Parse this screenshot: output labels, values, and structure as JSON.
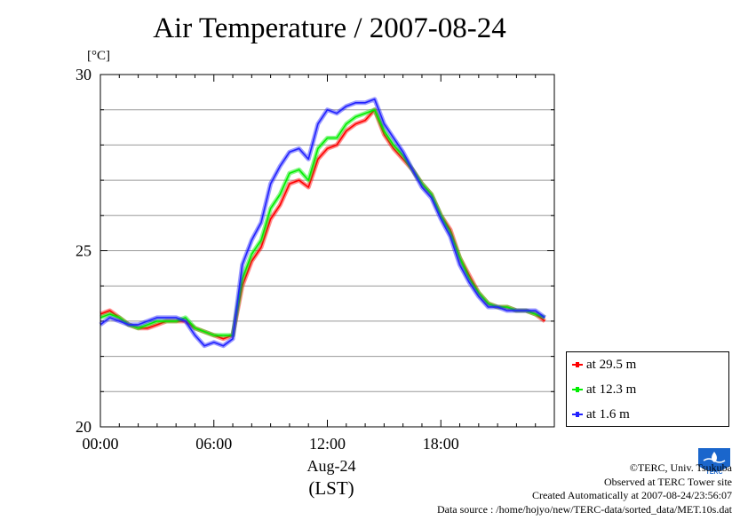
{
  "title": "Air Temperature / 2007-08-24",
  "unit": "[°C]",
  "date_label": "Aug-24",
  "tz_label": "(LST)",
  "credits": [
    "©TERC, Univ. Tsukuba",
    "Observed at TERC Tower site",
    "Created Automatically at 2007-08-24/23:56:07",
    "Data source : /home/hojyo/new/TERC-data/sorted_data/MET.10s.dat"
  ],
  "logo_text": "TERC",
  "chart_data": {
    "type": "line",
    "title": "Air Temperature / 2007-08-24",
    "xlabel": "Aug-24 (LST)",
    "ylabel": "[°C]",
    "xlim": [
      0,
      24
    ],
    "ylim": [
      20,
      30
    ],
    "x_ticks": [
      "00:00",
      "06:00",
      "12:00",
      "18:00"
    ],
    "y_ticks": [
      "20",
      "25",
      "30"
    ],
    "grid": true,
    "legend_position": "bottom-right outside",
    "x": [
      0,
      0.5,
      1,
      1.5,
      2,
      2.5,
      3,
      3.5,
      4,
      4.5,
      5,
      5.5,
      6,
      6.5,
      7,
      7.5,
      8,
      8.5,
      9,
      9.5,
      10,
      10.5,
      11,
      11.5,
      12,
      12.5,
      13,
      13.5,
      14,
      14.5,
      15,
      15.5,
      16,
      16.5,
      17,
      17.5,
      18,
      18.5,
      19,
      19.5,
      20,
      20.5,
      21,
      21.5,
      22,
      22.5,
      23,
      23.5
    ],
    "series": [
      {
        "name": "at 29.5 m",
        "color": "#ff0000",
        "values": [
          23.2,
          23.3,
          23.1,
          22.9,
          22.8,
          22.8,
          22.9,
          23.0,
          23.0,
          23.0,
          22.8,
          22.7,
          22.6,
          22.5,
          22.6,
          24.0,
          24.7,
          25.1,
          25.9,
          26.3,
          26.9,
          27.0,
          26.8,
          27.6,
          27.9,
          28.0,
          28.4,
          28.6,
          28.7,
          29.0,
          28.3,
          27.9,
          27.6,
          27.3,
          26.9,
          26.6,
          26.0,
          25.6,
          24.8,
          24.3,
          23.8,
          23.5,
          23.4,
          23.4,
          23.3,
          23.3,
          23.2,
          23.0
        ]
      },
      {
        "name": "at 12.3 m",
        "color": "#00ee00",
        "values": [
          23.1,
          23.2,
          23.1,
          22.9,
          22.8,
          22.9,
          23.0,
          23.0,
          23.0,
          23.1,
          22.8,
          22.7,
          22.6,
          22.6,
          22.6,
          24.2,
          24.9,
          25.3,
          26.2,
          26.6,
          27.2,
          27.3,
          27.0,
          27.9,
          28.2,
          28.2,
          28.6,
          28.8,
          28.9,
          29.0,
          28.4,
          28.0,
          27.7,
          27.3,
          26.9,
          26.6,
          26.0,
          25.5,
          24.8,
          24.2,
          23.8,
          23.5,
          23.4,
          23.4,
          23.3,
          23.3,
          23.2,
          23.1
        ]
      },
      {
        "name": "at 1.6 m",
        "color": "#2222ff",
        "values": [
          22.9,
          23.1,
          23.0,
          22.9,
          22.9,
          23.0,
          23.1,
          23.1,
          23.1,
          23.0,
          22.6,
          22.3,
          22.4,
          22.3,
          22.5,
          24.6,
          25.3,
          25.8,
          26.9,
          27.4,
          27.8,
          27.9,
          27.6,
          28.6,
          29.0,
          28.9,
          29.1,
          29.2,
          29.2,
          29.3,
          28.6,
          28.2,
          27.8,
          27.3,
          26.8,
          26.5,
          25.9,
          25.4,
          24.6,
          24.1,
          23.7,
          23.4,
          23.4,
          23.3,
          23.3,
          23.3,
          23.3,
          23.1
        ]
      }
    ]
  }
}
